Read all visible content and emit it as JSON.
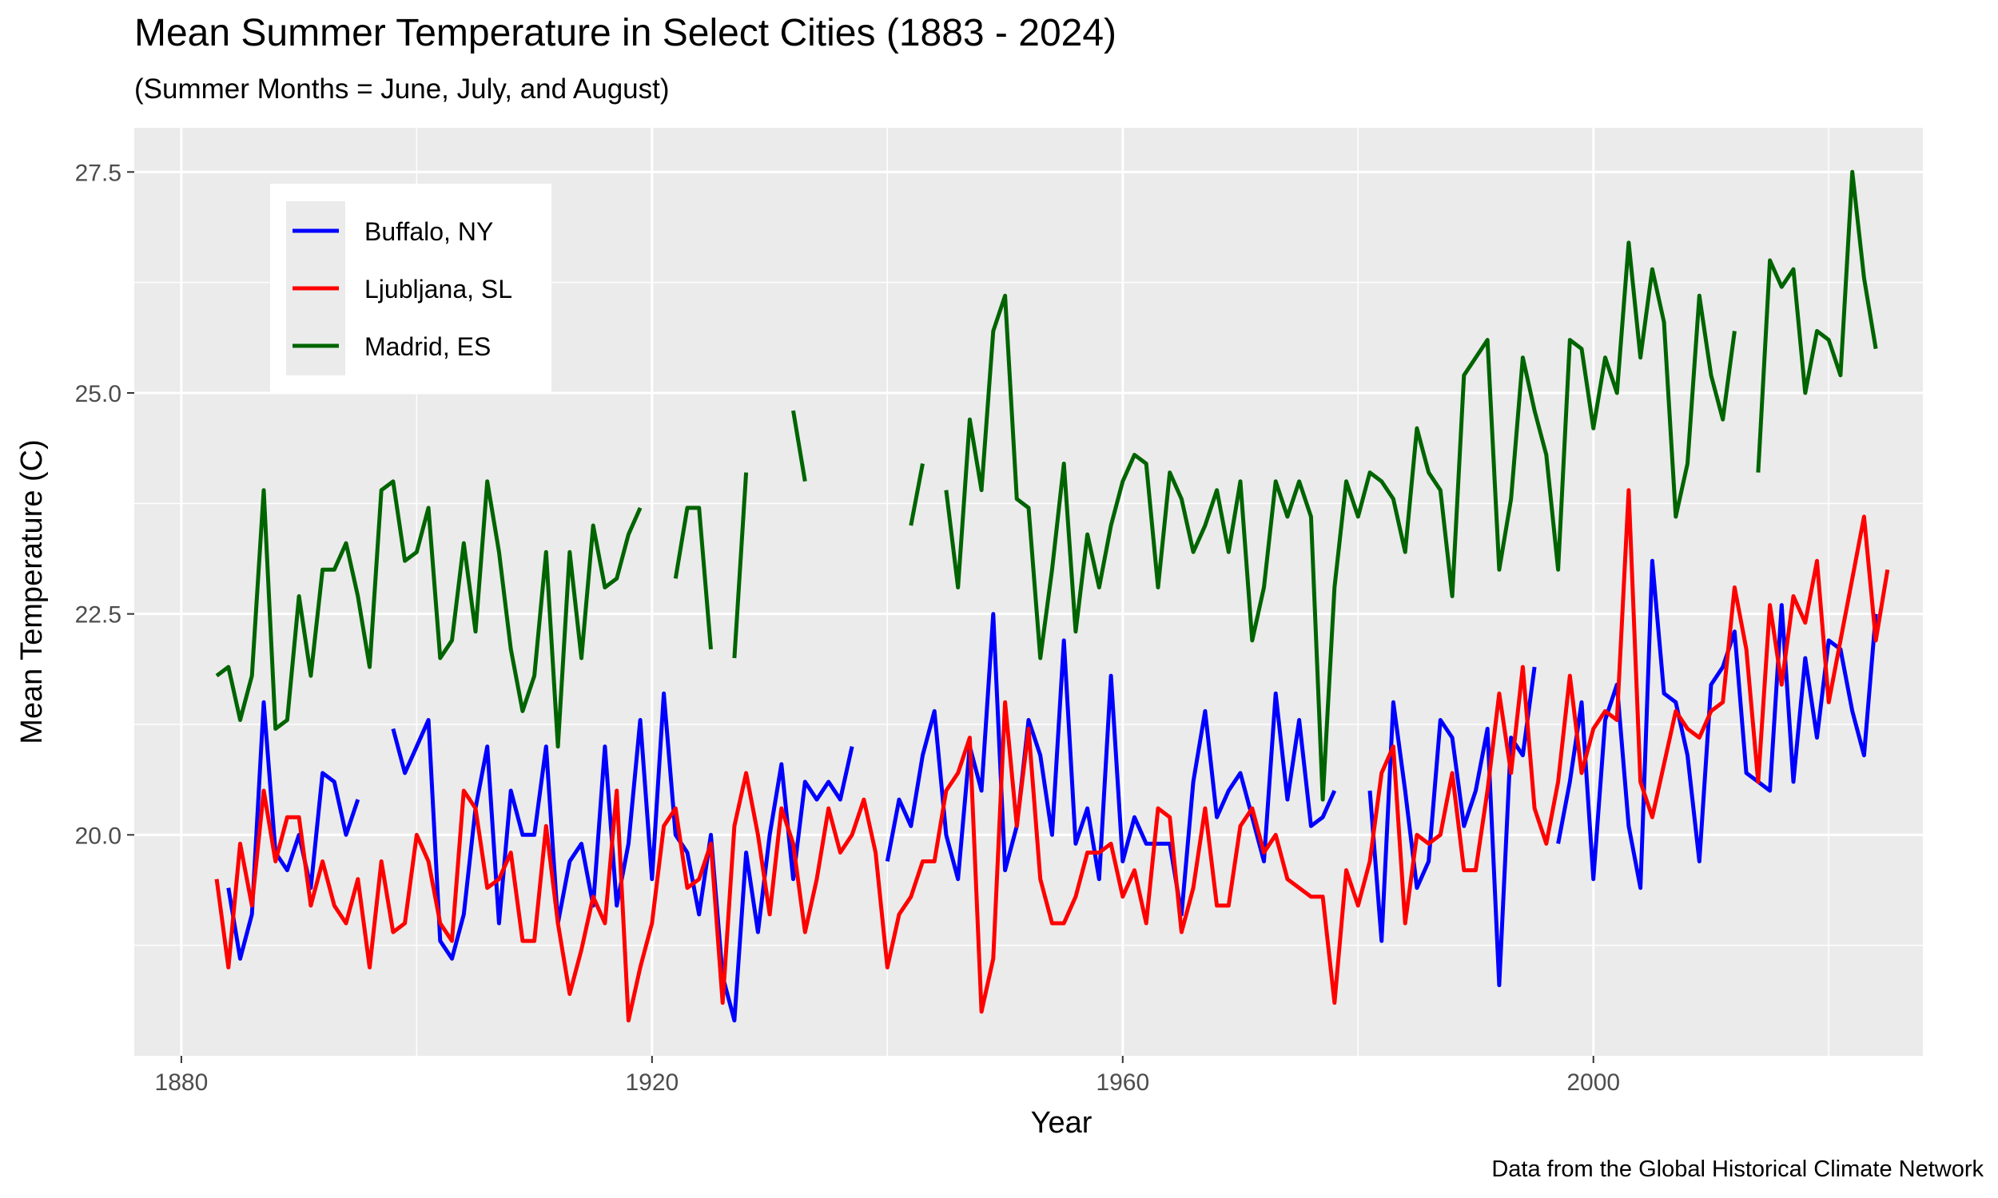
{
  "chart_data": {
    "type": "line",
    "title": "Mean Summer Temperature in Select Cities (1883 - 2024)",
    "subtitle": "(Summer Months = June, July, and August)",
    "caption": "Data from the Global Historical Climate Network",
    "xlabel": "Year",
    "ylabel": "Mean Temperature (C)",
    "xlim": [
      1876,
      2028
    ],
    "ylim": [
      17.5,
      28.0
    ],
    "x_ticks": [
      1880,
      1920,
      1960,
      2000
    ],
    "y_ticks": [
      20.0,
      22.5,
      25.0,
      27.5
    ],
    "y_tick_labels": [
      "20.0",
      "22.5",
      "25.0",
      "27.5"
    ],
    "grid": true,
    "legend_position": "top-left",
    "series": [
      {
        "name": "Buffalo, NY",
        "color": "#0000FF",
        "segments": [
          {
            "start": 1884,
            "values": [
              19.4,
              18.6,
              19.1,
              21.5,
              19.8,
              19.6,
              20.0,
              19.4,
              20.7,
              20.6,
              20.0,
              20.4
            ]
          },
          {
            "start": 1898,
            "values": [
              21.2,
              20.7,
              21.0,
              21.3,
              18.8,
              18.6,
              19.1,
              20.3,
              21.0,
              19.0,
              20.5,
              20.0,
              20.0,
              21.0,
              19.0,
              19.7,
              19.9,
              19.2,
              21.0,
              19.2,
              19.9,
              21.3,
              19.5,
              21.6,
              20.0,
              19.8,
              19.1,
              20.0,
              18.4,
              17.9,
              19.8,
              18.9,
              20.0,
              20.8,
              19.5,
              20.6,
              20.4,
              20.6,
              20.4,
              21.0
            ]
          },
          {
            "start": 1940,
            "values": [
              19.7,
              20.4,
              20.1,
              20.9,
              21.4,
              20.0,
              19.5,
              21.0,
              20.5,
              22.5,
              19.6,
              20.1,
              21.3,
              20.9,
              20.0,
              22.2,
              19.9,
              20.3,
              19.5,
              21.8,
              19.7,
              20.2,
              19.9,
              19.9,
              19.9,
              19.1,
              20.6,
              21.4,
              20.2,
              20.5,
              20.7,
              20.2,
              19.7,
              21.6,
              20.4,
              21.3,
              20.1,
              20.2,
              20.5
            ]
          },
          {
            "start": 1981,
            "values": [
              20.5,
              18.8,
              21.5,
              20.5,
              19.4,
              19.7,
              21.3,
              21.1,
              20.1,
              20.5,
              21.2,
              18.3,
              21.1,
              20.9,
              21.9
            ]
          },
          {
            "start": 1997,
            "values": [
              19.9,
              20.6,
              21.5,
              19.5,
              21.3,
              21.7,
              20.1,
              19.4,
              23.1,
              21.6,
              21.5,
              20.9,
              19.7,
              21.7,
              21.9,
              22.3,
              20.7,
              20.6,
              20.5,
              22.6,
              20.6,
              22.0,
              21.1,
              22.2,
              22.1,
              21.4,
              20.9,
              22.5
            ]
          }
        ]
      },
      {
        "name": "Ljubljana, SL",
        "color": "#FF0000",
        "segments": [
          {
            "start": 1883,
            "values": [
              19.5,
              18.5,
              19.9,
              19.2,
              20.5,
              19.7,
              20.2,
              20.2,
              19.2,
              19.7,
              19.2,
              19.0,
              19.5,
              18.5,
              19.7,
              18.9,
              19.0,
              20.0,
              19.7,
              19.0,
              18.8,
              20.5,
              20.3,
              19.4,
              19.5,
              19.8,
              18.8,
              18.8,
              20.1,
              19.0,
              18.2,
              18.7,
              19.3,
              19.0,
              20.5,
              17.9,
              18.5,
              19.0,
              20.1,
              20.3,
              19.4,
              19.5,
              19.9,
              18.1,
              20.1,
              20.7,
              20.0,
              19.1,
              20.3,
              19.9,
              18.9,
              19.5,
              20.3,
              19.8,
              20.0,
              20.4,
              19.8,
              18.5,
              19.1,
              19.3,
              19.7,
              19.7,
              20.5,
              20.7,
              21.1,
              18.0,
              18.6,
              21.5,
              20.1,
              21.2,
              19.5,
              19.0,
              19.0,
              19.3,
              19.8,
              19.8,
              19.9,
              19.3,
              19.6,
              19.0,
              20.3,
              20.2,
              18.9,
              19.4,
              20.3,
              19.2,
              19.2,
              20.1,
              20.3,
              19.8,
              20.0,
              19.5,
              19.4,
              19.3,
              19.3,
              18.1,
              19.6,
              19.2,
              19.7,
              20.7,
              21.0,
              19.0,
              20.0,
              19.9,
              20.0,
              20.7,
              19.6,
              19.6,
              20.5,
              21.6,
              20.7,
              21.9,
              20.3,
              19.9,
              20.6,
              21.8,
              20.7,
              21.2,
              21.4,
              21.3,
              23.9,
              20.6,
              20.2,
              20.8,
              21.4,
              21.2,
              21.1,
              21.4,
              21.5,
              22.8,
              22.1,
              20.6,
              22.6,
              21.7,
              22.7,
              22.4,
              23.1,
              21.5,
              22.2,
              22.9,
              23.6,
              22.2,
              23.0
            ]
          }
        ]
      },
      {
        "name": "Madrid, ES",
        "color": "#006400",
        "segments": [
          {
            "start": 1883,
            "values": [
              21.8,
              21.9,
              21.3,
              21.8,
              23.9,
              21.2,
              21.3,
              22.7,
              21.8,
              23.0,
              23.0,
              23.3,
              22.7,
              21.9,
              23.9,
              24.0,
              23.1,
              23.2,
              23.7,
              22.0,
              22.2,
              23.3,
              22.3,
              24.0,
              23.2,
              22.1,
              21.4,
              21.8,
              23.2,
              21.0,
              23.2,
              22.0,
              23.5,
              22.8,
              22.9,
              23.4,
              23.7
            ]
          },
          {
            "start": 1922,
            "values": [
              22.9,
              23.7,
              23.7,
              22.1
            ]
          },
          {
            "start": 1927,
            "values": [
              22.0,
              24.1
            ]
          },
          {
            "start": 1932,
            "values": [
              24.8,
              24.0
            ]
          },
          {
            "start": 1942,
            "values": [
              23.5,
              24.2
            ]
          },
          {
            "start": 1945,
            "values": [
              23.9,
              22.8,
              24.7,
              23.9,
              25.7,
              26.1,
              23.8,
              23.7,
              22.0,
              23.0,
              24.2,
              22.3,
              23.4,
              22.8,
              23.5,
              24.0,
              24.3,
              24.2,
              22.8,
              24.1,
              23.8,
              23.2,
              23.5,
              23.9,
              23.2,
              24.0,
              22.2,
              22.8,
              24.0,
              23.6,
              24.0,
              23.6,
              20.4,
              22.8,
              24.0,
              23.6,
              24.1,
              24.0,
              23.8,
              23.2,
              24.6,
              24.1,
              23.9,
              22.7,
              25.2,
              25.4,
              25.6,
              23.0,
              23.8,
              25.4,
              24.8,
              24.3,
              23.0,
              25.6,
              25.5,
              24.6,
              25.4,
              25.0,
              26.7,
              25.4,
              26.4,
              25.8,
              23.6,
              24.2,
              26.1,
              25.2,
              24.7,
              25.7
            ]
          },
          {
            "start": 2014,
            "values": [
              24.1,
              26.5,
              26.2,
              26.4,
              25.0,
              25.7,
              25.6,
              25.2,
              27.5,
              26.3,
              25.5
            ]
          }
        ]
      }
    ]
  }
}
